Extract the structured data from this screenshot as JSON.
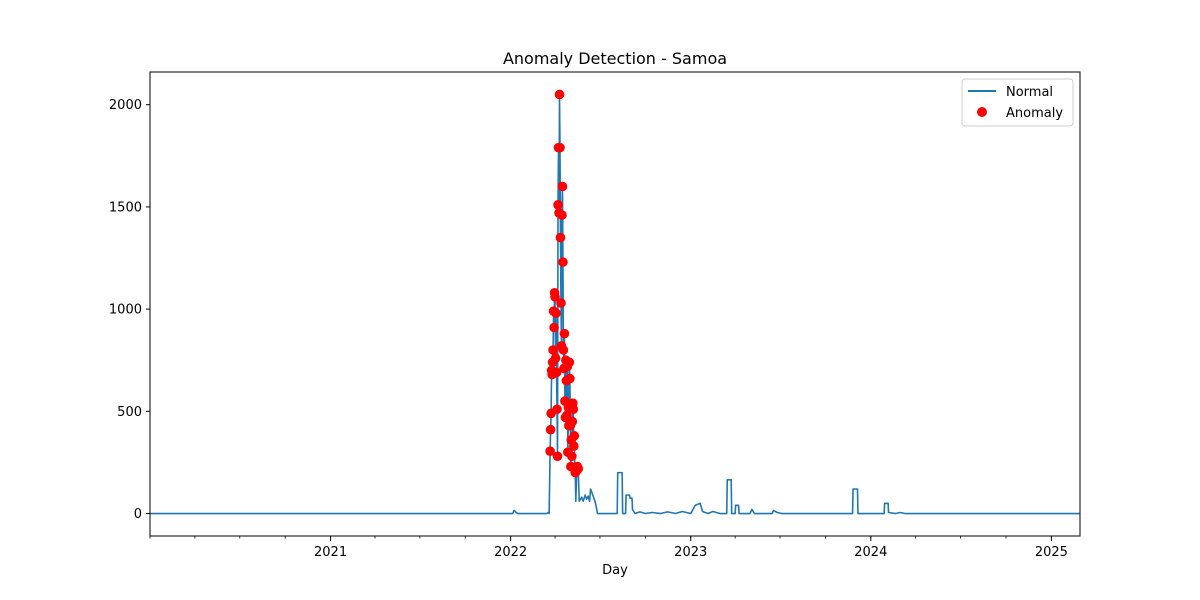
{
  "colors": {
    "normal": "#1f77b4",
    "anomaly": "#ff0000",
    "axis": "#000000"
  },
  "chart_data": {
    "type": "line",
    "title": "Anomaly Detection - Samoa",
    "xlabel": "Day",
    "ylabel": "",
    "xlim": [
      "2020-01-01",
      "2025-02-28"
    ],
    "ylim": [
      -110,
      2160
    ],
    "x_ticks": [
      "2021-01-01",
      "2022-01-01",
      "2023-01-01",
      "2024-01-01",
      "2025-01-01"
    ],
    "x_tick_labels": [
      "2021",
      "2022",
      "2023",
      "2024",
      "2025"
    ],
    "y_ticks": [
      0,
      500,
      1000,
      1500,
      2000
    ],
    "y_tick_labels": [
      "0",
      "500",
      "1000",
      "1500",
      "2000"
    ],
    "grid": false,
    "legend": {
      "placement": "top-right",
      "entries": [
        "Normal",
        "Anomaly"
      ]
    },
    "series": [
      {
        "name": "Normal",
        "kind": "line",
        "points": [
          [
            "2020-01-01",
            0
          ],
          [
            "2021-12-15",
            0
          ],
          [
            "2022-01-05",
            0
          ],
          [
            "2022-01-08",
            15
          ],
          [
            "2022-01-12",
            5
          ],
          [
            "2022-01-16",
            0
          ],
          [
            "2022-03-15",
            0
          ],
          [
            "2022-03-18",
            5
          ],
          [
            "2022-03-20",
            0
          ],
          [
            "2022-03-21",
            150
          ],
          [
            "2022-03-22",
            305
          ],
          [
            "2022-03-23",
            410
          ],
          [
            "2022-03-24",
            490
          ],
          [
            "2022-03-25",
            700
          ],
          [
            "2022-03-26",
            680
          ],
          [
            "2022-03-27",
            740
          ],
          [
            "2022-03-28",
            800
          ],
          [
            "2022-03-29",
            990
          ],
          [
            "2022-03-30",
            910
          ],
          [
            "2022-03-31",
            1080
          ],
          [
            "2022-04-01",
            1060
          ],
          [
            "2022-04-02",
            760
          ],
          [
            "2022-04-03",
            980
          ],
          [
            "2022-04-04",
            690
          ],
          [
            "2022-04-05",
            510
          ],
          [
            "2022-04-06",
            280
          ],
          [
            "2022-04-07",
            1510
          ],
          [
            "2022-04-08",
            1790
          ],
          [
            "2022-04-09",
            1470
          ],
          [
            "2022-04-10",
            2050
          ],
          [
            "2022-04-11",
            1790
          ],
          [
            "2022-04-12",
            1350
          ],
          [
            "2022-04-13",
            1030
          ],
          [
            "2022-04-14",
            820
          ],
          [
            "2022-04-15",
            1460
          ],
          [
            "2022-04-16",
            1600
          ],
          [
            "2022-04-17",
            1230
          ],
          [
            "2022-04-18",
            800
          ],
          [
            "2022-04-19",
            710
          ],
          [
            "2022-04-20",
            880
          ],
          [
            "2022-04-21",
            550
          ],
          [
            "2022-04-22",
            470
          ],
          [
            "2022-04-23",
            750
          ],
          [
            "2022-04-24",
            650
          ],
          [
            "2022-04-25",
            480
          ],
          [
            "2022-04-26",
            720
          ],
          [
            "2022-04-27",
            300
          ],
          [
            "2022-04-28",
            520
          ],
          [
            "2022-04-29",
            430
          ],
          [
            "2022-04-30",
            740
          ],
          [
            "2022-05-01",
            660
          ],
          [
            "2022-05-02",
            430
          ],
          [
            "2022-05-03",
            230
          ],
          [
            "2022-05-04",
            360
          ],
          [
            "2022-05-05",
            280
          ],
          [
            "2022-05-06",
            450
          ],
          [
            "2022-05-07",
            540
          ],
          [
            "2022-05-08",
            510
          ],
          [
            "2022-05-09",
            330
          ],
          [
            "2022-05-10",
            380
          ],
          [
            "2022-05-11",
            220
          ],
          [
            "2022-05-12",
            200
          ],
          [
            "2022-05-13",
            60
          ],
          [
            "2022-05-15",
            210
          ],
          [
            "2022-05-16",
            230
          ],
          [
            "2022-05-18",
            220
          ],
          [
            "2022-05-20",
            60
          ],
          [
            "2022-05-25",
            80
          ],
          [
            "2022-05-28",
            60
          ],
          [
            "2022-06-01",
            90
          ],
          [
            "2022-06-04",
            70
          ],
          [
            "2022-06-07",
            85
          ],
          [
            "2022-06-10",
            60
          ],
          [
            "2022-06-12",
            120
          ],
          [
            "2022-06-15",
            100
          ],
          [
            "2022-06-18",
            80
          ],
          [
            "2022-06-22",
            50
          ],
          [
            "2022-06-26",
            0
          ],
          [
            "2022-08-05",
            0
          ],
          [
            "2022-08-06",
            200
          ],
          [
            "2022-08-15",
            200
          ],
          [
            "2022-08-16",
            0
          ],
          [
            "2022-08-22",
            0
          ],
          [
            "2022-08-23",
            90
          ],
          [
            "2022-08-30",
            90
          ],
          [
            "2022-08-31",
            75
          ],
          [
            "2022-09-04",
            75
          ],
          [
            "2022-09-05",
            20
          ],
          [
            "2022-09-10",
            0
          ],
          [
            "2022-09-20",
            8
          ],
          [
            "2022-10-01",
            0
          ],
          [
            "2022-10-15",
            5
          ],
          [
            "2022-11-01",
            0
          ],
          [
            "2022-11-15",
            8
          ],
          [
            "2022-12-01",
            0
          ],
          [
            "2022-12-15",
            10
          ],
          [
            "2023-01-01",
            0
          ],
          [
            "2023-01-10",
            40
          ],
          [
            "2023-01-20",
            50
          ],
          [
            "2023-01-25",
            10
          ],
          [
            "2023-02-05",
            0
          ],
          [
            "2023-02-15",
            10
          ],
          [
            "2023-03-01",
            0
          ],
          [
            "2023-03-15",
            0
          ],
          [
            "2023-03-16",
            165
          ],
          [
            "2023-03-24",
            165
          ],
          [
            "2023-03-25",
            0
          ],
          [
            "2023-04-01",
            0
          ],
          [
            "2023-04-02",
            40
          ],
          [
            "2023-04-08",
            40
          ],
          [
            "2023-04-09",
            0
          ],
          [
            "2023-05-01",
            0
          ],
          [
            "2023-05-05",
            20
          ],
          [
            "2023-05-10",
            0
          ],
          [
            "2023-06-15",
            0
          ],
          [
            "2023-06-18",
            15
          ],
          [
            "2023-06-25",
            5
          ],
          [
            "2023-07-05",
            0
          ],
          [
            "2023-11-25",
            0
          ],
          [
            "2023-11-26",
            120
          ],
          [
            "2023-12-05",
            120
          ],
          [
            "2023-12-06",
            0
          ],
          [
            "2024-01-28",
            0
          ],
          [
            "2024-01-29",
            50
          ],
          [
            "2024-02-05",
            50
          ],
          [
            "2024-02-06",
            5
          ],
          [
            "2024-02-20",
            0
          ],
          [
            "2024-03-01",
            5
          ],
          [
            "2024-03-10",
            0
          ],
          [
            "2025-02-28",
            0
          ]
        ]
      },
      {
        "name": "Anomaly",
        "kind": "scatter",
        "points": [
          [
            "2022-03-22",
            305
          ],
          [
            "2022-03-23",
            410
          ],
          [
            "2022-03-24",
            490
          ],
          [
            "2022-03-25",
            700
          ],
          [
            "2022-03-26",
            680
          ],
          [
            "2022-03-27",
            740
          ],
          [
            "2022-03-28",
            800
          ],
          [
            "2022-03-29",
            990
          ],
          [
            "2022-03-30",
            910
          ],
          [
            "2022-03-31",
            1080
          ],
          [
            "2022-04-01",
            1060
          ],
          [
            "2022-04-02",
            760
          ],
          [
            "2022-04-03",
            980
          ],
          [
            "2022-04-04",
            690
          ],
          [
            "2022-04-05",
            510
          ],
          [
            "2022-04-06",
            280
          ],
          [
            "2022-04-07",
            1510
          ],
          [
            "2022-04-08",
            1790
          ],
          [
            "2022-04-09",
            1470
          ],
          [
            "2022-04-10",
            2050
          ],
          [
            "2022-04-11",
            1790
          ],
          [
            "2022-04-12",
            1350
          ],
          [
            "2022-04-13",
            1030
          ],
          [
            "2022-04-14",
            820
          ],
          [
            "2022-04-15",
            1460
          ],
          [
            "2022-04-16",
            1600
          ],
          [
            "2022-04-17",
            1230
          ],
          [
            "2022-04-18",
            800
          ],
          [
            "2022-04-19",
            710
          ],
          [
            "2022-04-20",
            880
          ],
          [
            "2022-04-21",
            550
          ],
          [
            "2022-04-22",
            470
          ],
          [
            "2022-04-23",
            750
          ],
          [
            "2022-04-24",
            650
          ],
          [
            "2022-04-25",
            480
          ],
          [
            "2022-04-26",
            720
          ],
          [
            "2022-04-27",
            300
          ],
          [
            "2022-04-28",
            520
          ],
          [
            "2022-04-29",
            430
          ],
          [
            "2022-04-30",
            740
          ],
          [
            "2022-05-01",
            660
          ],
          [
            "2022-05-02",
            430
          ],
          [
            "2022-05-03",
            230
          ],
          [
            "2022-05-04",
            360
          ],
          [
            "2022-05-05",
            280
          ],
          [
            "2022-05-06",
            450
          ],
          [
            "2022-05-07",
            540
          ],
          [
            "2022-05-08",
            510
          ],
          [
            "2022-05-09",
            330
          ],
          [
            "2022-05-10",
            380
          ],
          [
            "2022-05-11",
            220
          ],
          [
            "2022-05-12",
            200
          ],
          [
            "2022-05-15",
            210
          ],
          [
            "2022-05-16",
            230
          ],
          [
            "2022-05-18",
            220
          ]
        ]
      }
    ]
  }
}
